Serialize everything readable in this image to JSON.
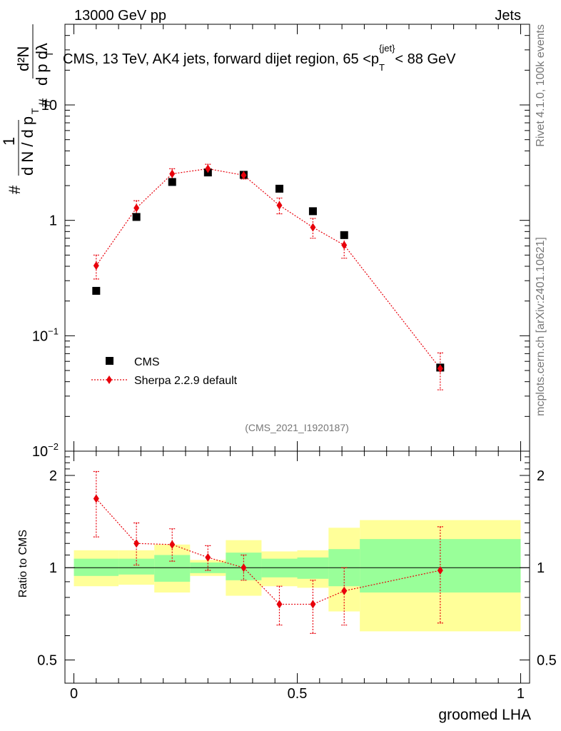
{
  "header": {
    "energy_label": "13000 GeV pp",
    "category_label": "Jets"
  },
  "side_labels": {
    "rivet": "Rivet 4.1.0,  100k events",
    "mcplots": "mcplots.cern.ch [arXiv:2401.10621]"
  },
  "chart_data": [
    {
      "type": "scatter",
      "title": "CMS, 13 TeV, AK4 jets, forward dijet region, 65 <p_T^{jet}< 88 GeV",
      "title_parts": {
        "main": "CMS, 13 TeV, AK4 jets, forward dijet region, 65 <p",
        "sub": "T",
        "sup": "{jet}",
        "tail": "< 88 GeV"
      },
      "ylabel": "1/(dN/dp_T) d²N/(dp_T dλ)",
      "ylabel_parts": {
        "hash": "#",
        "one": "1",
        "dn": "d N / d p",
        "t": "T",
        "d2n": "d²N",
        "dpdl": "d p  dλ"
      },
      "yscale": "log",
      "ylim": [
        0.01,
        50
      ],
      "ytick_labels": [
        "10^{-2}",
        "10^{-1}",
        "1",
        "10"
      ],
      "ytick_parts": [
        {
          "b": "10",
          "e": "−2"
        },
        {
          "b": "10",
          "e": "−1"
        },
        {
          "b": "1",
          "e": ""
        },
        {
          "b": "10",
          "e": ""
        }
      ],
      "xlim": [
        -0.02,
        1.02
      ],
      "watermark": "(CMS_2021_I1920187)",
      "legend": {
        "position": "lower-left",
        "entries": [
          "CMS",
          "Sherpa 2.2.9 default"
        ]
      },
      "series": [
        {
          "name": "CMS",
          "marker": "square",
          "color": "#000000",
          "x": [
            0.05,
            0.14,
            0.22,
            0.3,
            0.38,
            0.46,
            0.535,
            0.605,
            0.82
          ],
          "y": [
            0.245,
            1.07,
            2.15,
            2.6,
            2.48,
            1.88,
            1.2,
            0.745,
            0.053
          ]
        },
        {
          "name": "Sherpa 2.2.9 default",
          "marker": "diamond",
          "color": "#e8000b",
          "x": [
            0.05,
            0.14,
            0.22,
            0.3,
            0.38,
            0.46,
            0.535,
            0.605,
            0.82
          ],
          "y": [
            0.405,
            1.28,
            2.53,
            2.8,
            2.46,
            1.35,
            0.87,
            0.61,
            0.052
          ],
          "yerr_low": [
            0.31,
            1.08,
            2.25,
            2.55,
            2.28,
            1.14,
            0.7,
            0.47,
            0.034
          ],
          "yerr_high": [
            0.5,
            1.48,
            2.8,
            3.06,
            2.64,
            1.56,
            1.04,
            0.75,
            0.071
          ]
        }
      ]
    },
    {
      "type": "scatter",
      "ylabel": "Ratio to CMS",
      "xlabel": "groomed LHA",
      "ylim": [
        0.42,
        2.4
      ],
      "xlim": [
        -0.02,
        1.02
      ],
      "ytick_labels": [
        "0.5",
        "1",
        "2"
      ],
      "xtick_labels": [
        "0",
        "0.5",
        "1"
      ],
      "reference_line": 1.0,
      "bands": [
        {
          "x0": 0.0,
          "x1": 0.1,
          "green": [
            0.94,
            1.07
          ],
          "yellow": [
            0.87,
            1.14
          ]
        },
        {
          "x0": 0.1,
          "x1": 0.18,
          "green": [
            0.95,
            1.07
          ],
          "yellow": [
            0.88,
            1.14
          ]
        },
        {
          "x0": 0.18,
          "x1": 0.26,
          "green": [
            0.9,
            1.1
          ],
          "yellow": [
            0.83,
            1.19
          ]
        },
        {
          "x0": 0.26,
          "x1": 0.34,
          "green": [
            0.96,
            1.04
          ],
          "yellow": [
            0.94,
            1.06
          ]
        },
        {
          "x0": 0.34,
          "x1": 0.42,
          "green": [
            0.91,
            1.12
          ],
          "yellow": [
            0.81,
            1.23
          ]
        },
        {
          "x0": 0.42,
          "x1": 0.5,
          "green": [
            0.93,
            1.07
          ],
          "yellow": [
            0.87,
            1.13
          ]
        },
        {
          "x0": 0.5,
          "x1": 0.57,
          "green": [
            0.92,
            1.08
          ],
          "yellow": [
            0.86,
            1.14
          ]
        },
        {
          "x0": 0.57,
          "x1": 0.64,
          "green": [
            0.87,
            1.15
          ],
          "yellow": [
            0.72,
            1.35
          ]
        },
        {
          "x0": 0.64,
          "x1": 1.0,
          "green": [
            0.83,
            1.24
          ],
          "yellow": [
            0.62,
            1.43
          ]
        }
      ],
      "series": [
        {
          "name": "Sherpa 2.2.9 default",
          "color": "#e8000b",
          "x": [
            0.05,
            0.14,
            0.22,
            0.3,
            0.38,
            0.46,
            0.535,
            0.605,
            0.82
          ],
          "y": [
            1.68,
            1.2,
            1.19,
            1.08,
            1.0,
            0.76,
            0.76,
            0.84,
            0.98
          ],
          "yerr_low": [
            1.26,
            1.02,
            1.05,
            0.98,
            0.91,
            0.65,
            0.61,
            0.65,
            0.66
          ],
          "yerr_high": [
            2.06,
            1.4,
            1.34,
            1.18,
            1.1,
            0.87,
            0.91,
            1.0,
            1.36
          ]
        }
      ]
    }
  ]
}
